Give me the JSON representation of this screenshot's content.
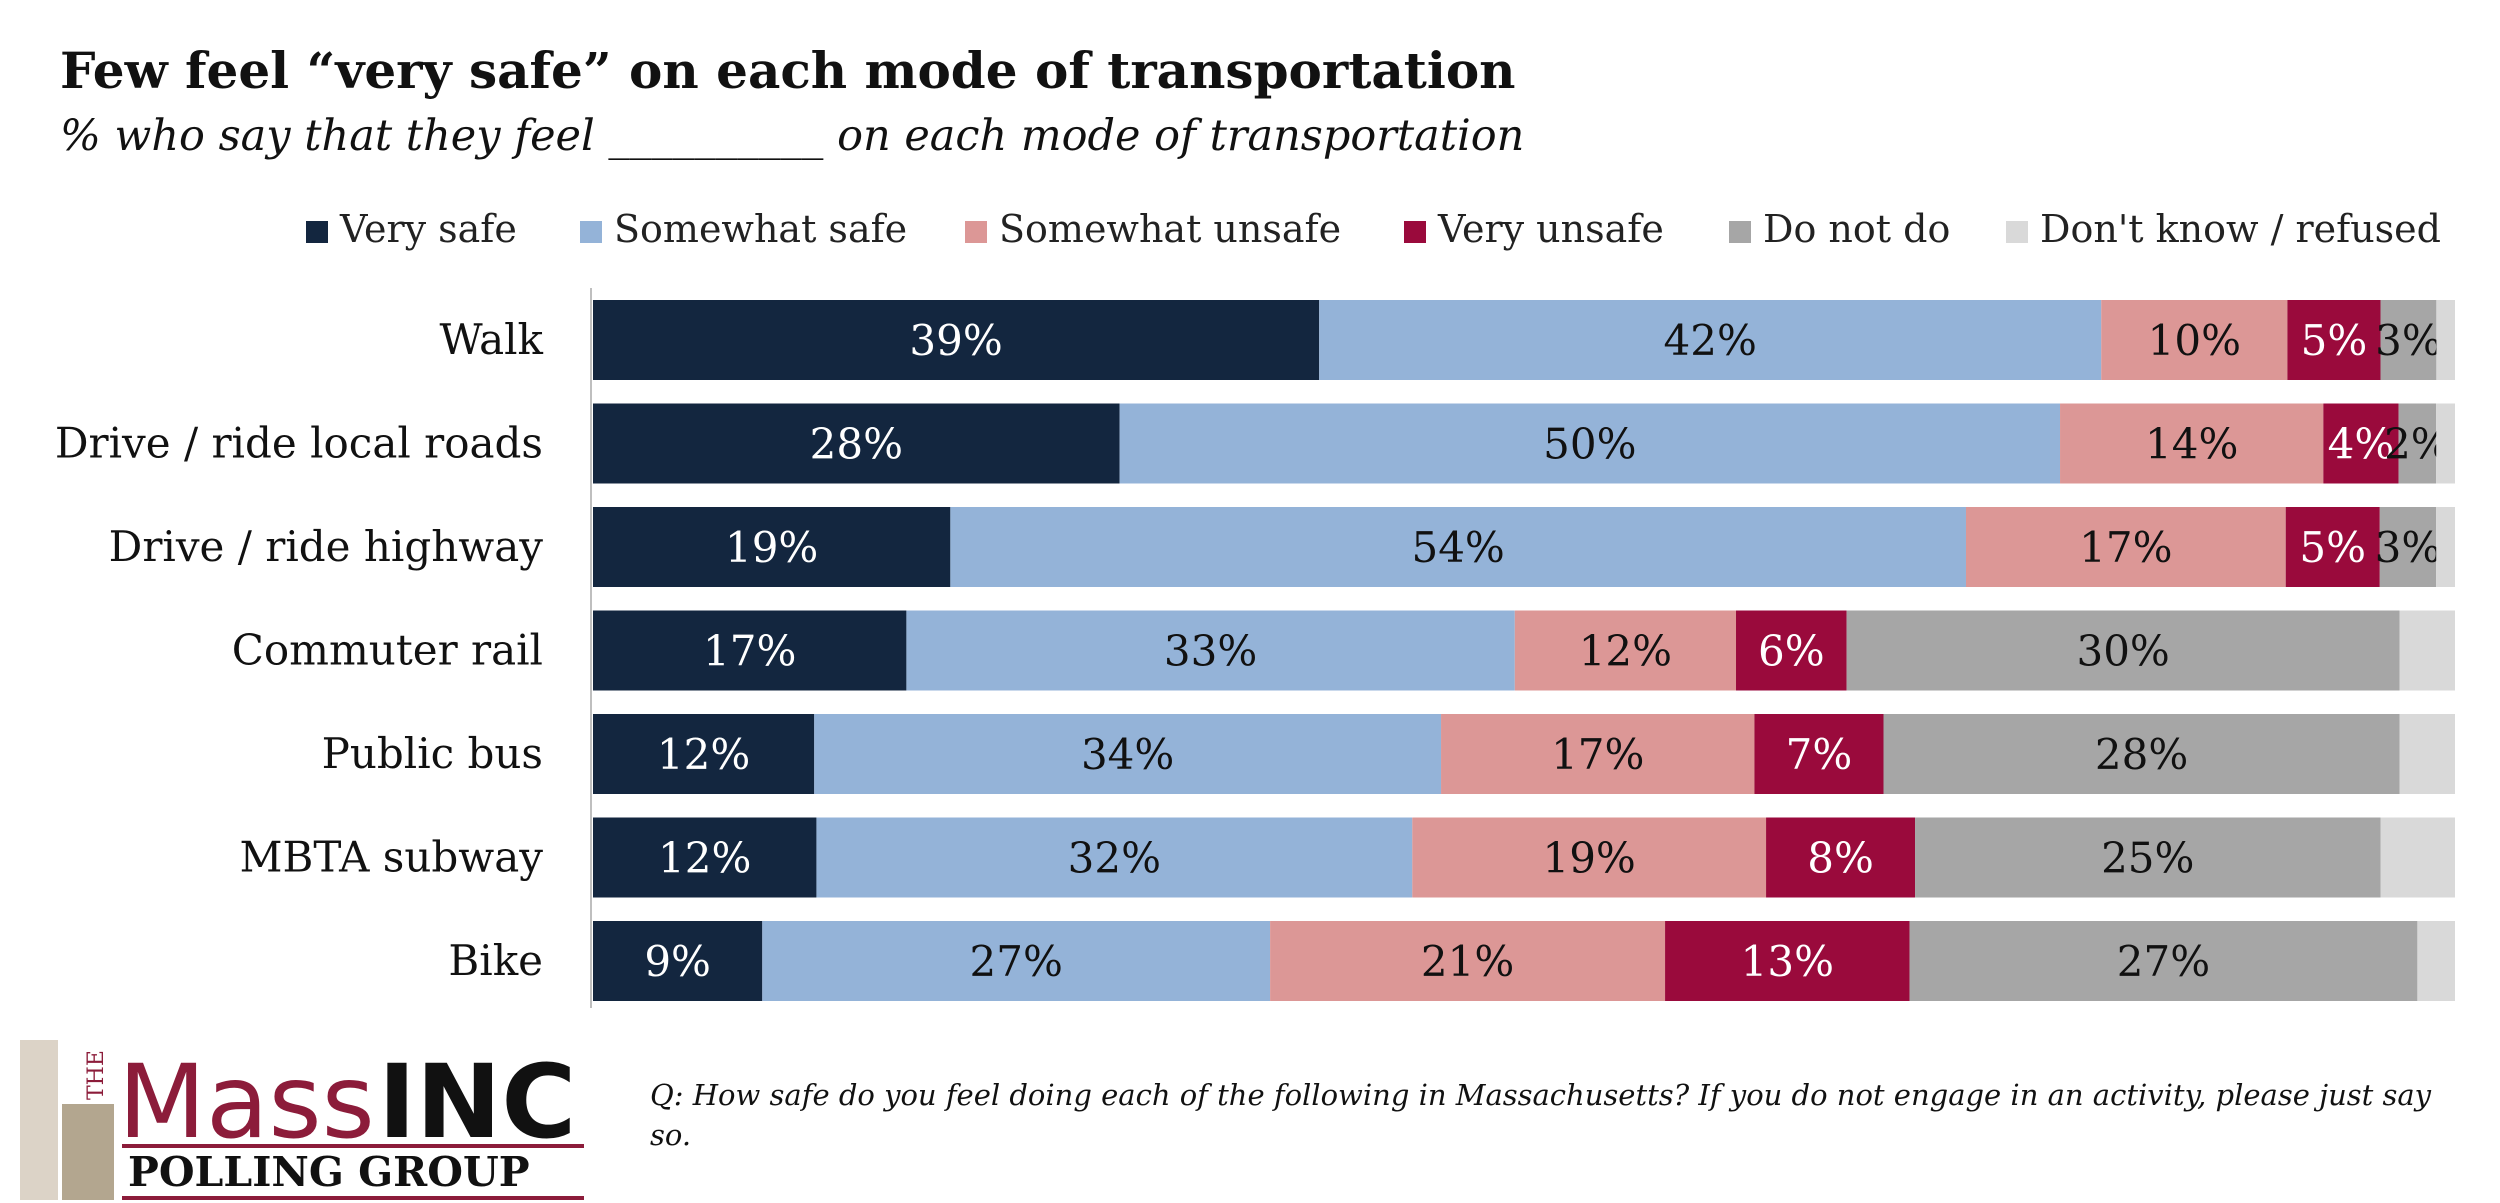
{
  "chart_data": {
    "type": "bar",
    "orientation": "horizontal",
    "stacked": true,
    "title": "Few feel “very safe” on each mode of transportation",
    "subtitle": "% who say that they feel __________ on each mode of transportation",
    "legend_position": "top",
    "grid": false,
    "xlim": [
      0,
      100
    ],
    "categories": [
      "Walk",
      "Drive / ride local roads",
      "Drive / ride highway",
      "Commuter rail",
      "Public bus",
      "MBTA subway",
      "Bike"
    ],
    "series": [
      {
        "name": "Very safe",
        "color": "#13263f",
        "text_color": "#ffffff",
        "values": [
          39,
          28,
          19,
          17,
          12,
          12,
          9
        ],
        "labels": [
          "39%",
          "28%",
          "19%",
          "17%",
          "12%",
          "12%",
          "9%"
        ]
      },
      {
        "name": "Somewhat safe",
        "color": "#94b3d8",
        "text_color": "#111111",
        "values": [
          42,
          50,
          54,
          33,
          34,
          32,
          27
        ],
        "labels": [
          "42%",
          "50%",
          "54%",
          "33%",
          "34%",
          "32%",
          "27%"
        ]
      },
      {
        "name": "Somewhat unsafe",
        "color": "#dc9796",
        "text_color": "#111111",
        "values": [
          10,
          14,
          17,
          12,
          17,
          19,
          21
        ],
        "labels": [
          "10%",
          "14%",
          "17%",
          "12%",
          "17%",
          "19%",
          "21%"
        ]
      },
      {
        "name": "Very unsafe",
        "color": "#9a0a3c",
        "text_color": "#ffffff",
        "values": [
          5,
          4,
          5,
          6,
          7,
          8,
          13
        ],
        "labels": [
          "5%",
          "4%",
          "5%",
          "6%",
          "7%",
          "8%",
          "13%"
        ]
      },
      {
        "name": "Do not do",
        "color": "#a6a6a6",
        "text_color": "#111111",
        "values": [
          3,
          2,
          3,
          30,
          28,
          25,
          27
        ],
        "labels": [
          "3%",
          "2%",
          "3%",
          "30%",
          "28%",
          "25%",
          "27%"
        ]
      },
      {
        "name": "Don't know / refused",
        "color": "#d9d9d9",
        "text_color": "#111111",
        "values": [
          1,
          1,
          1,
          3,
          3,
          4,
          2
        ],
        "labels": [
          "",
          "",
          "",
          "",
          "",
          "",
          ""
        ]
      }
    ]
  },
  "logo": {
    "the": "THE",
    "mass": "Mass",
    "inc": "INC",
    "polling_group": "POLLING GROUP",
    "colors": {
      "maroon": "#8c1c3a",
      "beige_light": "#dcd3c7",
      "beige_dark": "#b3a68f"
    }
  },
  "footnote": "Q: How safe do you feel doing each of the following in Massachusetts? If you do not engage in an activity, please just say so."
}
